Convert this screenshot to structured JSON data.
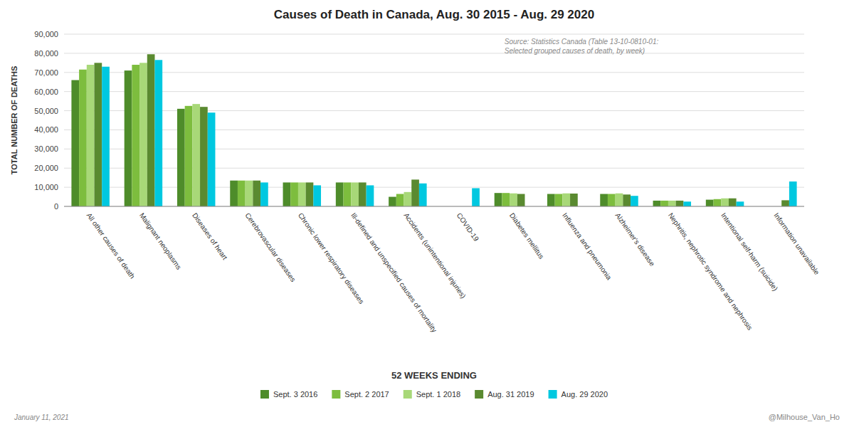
{
  "chart_data": {
    "type": "bar",
    "title": "Causes of Death in Canada, Aug. 30 2015 - Aug. 29 2020",
    "x_label": "52 WEEKS ENDING",
    "y_label": "TOTAL NUMBER OF DEATHS",
    "annotations": [
      "Source: Statistics Canada (Table 13-10-0810-01:\nSelected grouped causes of death, by week)",
      "January 11, 2021",
      "@Milhouse_Van_Ho"
    ],
    "categories": [
      "All other causes of death",
      "Malignant neoplasms",
      "Diseases of heart",
      "Cerebrovascular diseases",
      "Chronic lower respiratory diseases",
      "Ill-defined and unspecified causes of mortality",
      "Accidents (unintentional injuries)",
      "COVID-19",
      "Diabetes mellitus",
      "Influenza and pneumonia",
      "Alzheimer's disease",
      "Nephritis, nephrotic syndrome and nephrosis",
      "Intentional self-harm (suicide)",
      "Information unavailable"
    ],
    "series": [
      {
        "name": "Sept. 3 2016",
        "color": "#4e8c2a",
        "values": [
          66000,
          71000,
          51000,
          13500,
          12500,
          12500,
          5000,
          0,
          7000,
          6500,
          6500,
          3000,
          3500,
          0
        ]
      },
      {
        "name": "Sept. 2 2017",
        "color": "#7dbd3e",
        "values": [
          71500,
          74000,
          52500,
          13500,
          12500,
          12500,
          6500,
          0,
          7000,
          6500,
          6500,
          3000,
          3800,
          0
        ]
      },
      {
        "name": "Sept. 1 2018",
        "color": "#a8d878",
        "values": [
          74000,
          75000,
          53500,
          13500,
          12500,
          12500,
          7500,
          0,
          6800,
          6800,
          6800,
          3000,
          4200,
          0
        ]
      },
      {
        "name": "Aug. 31 2019",
        "color": "#5a8a30",
        "values": [
          75000,
          79500,
          52000,
          13500,
          12500,
          12500,
          14000,
          0,
          6500,
          6700,
          6200,
          3000,
          4200,
          3200
        ]
      },
      {
        "name": "Aug. 29 2020",
        "color": "#00c8e0",
        "values": [
          73000,
          76500,
          49000,
          12500,
          11000,
          11000,
          12000,
          9500,
          0,
          0,
          5500,
          2500,
          2500,
          13000
        ]
      }
    ],
    "ylim": [
      0,
      90000
    ],
    "yticks": [
      0,
      {
        "value": 10000,
        "label": "10,000"
      },
      {
        "value": 20000,
        "label": "20,000"
      },
      {
        "value": 30000,
        "label": "30,000"
      },
      {
        "value": 40000,
        "label": "40,000"
      },
      {
        "value": 50000,
        "label": "50,000"
      },
      {
        "value": 60000,
        "label": "60,000"
      },
      {
        "value": 70000,
        "label": "70,000"
      },
      {
        "value": 80000,
        "label": "80,000"
      },
      {
        "value": 90000,
        "label": "90,000"
      }
    ],
    "grid": true,
    "legend": "bottom"
  }
}
